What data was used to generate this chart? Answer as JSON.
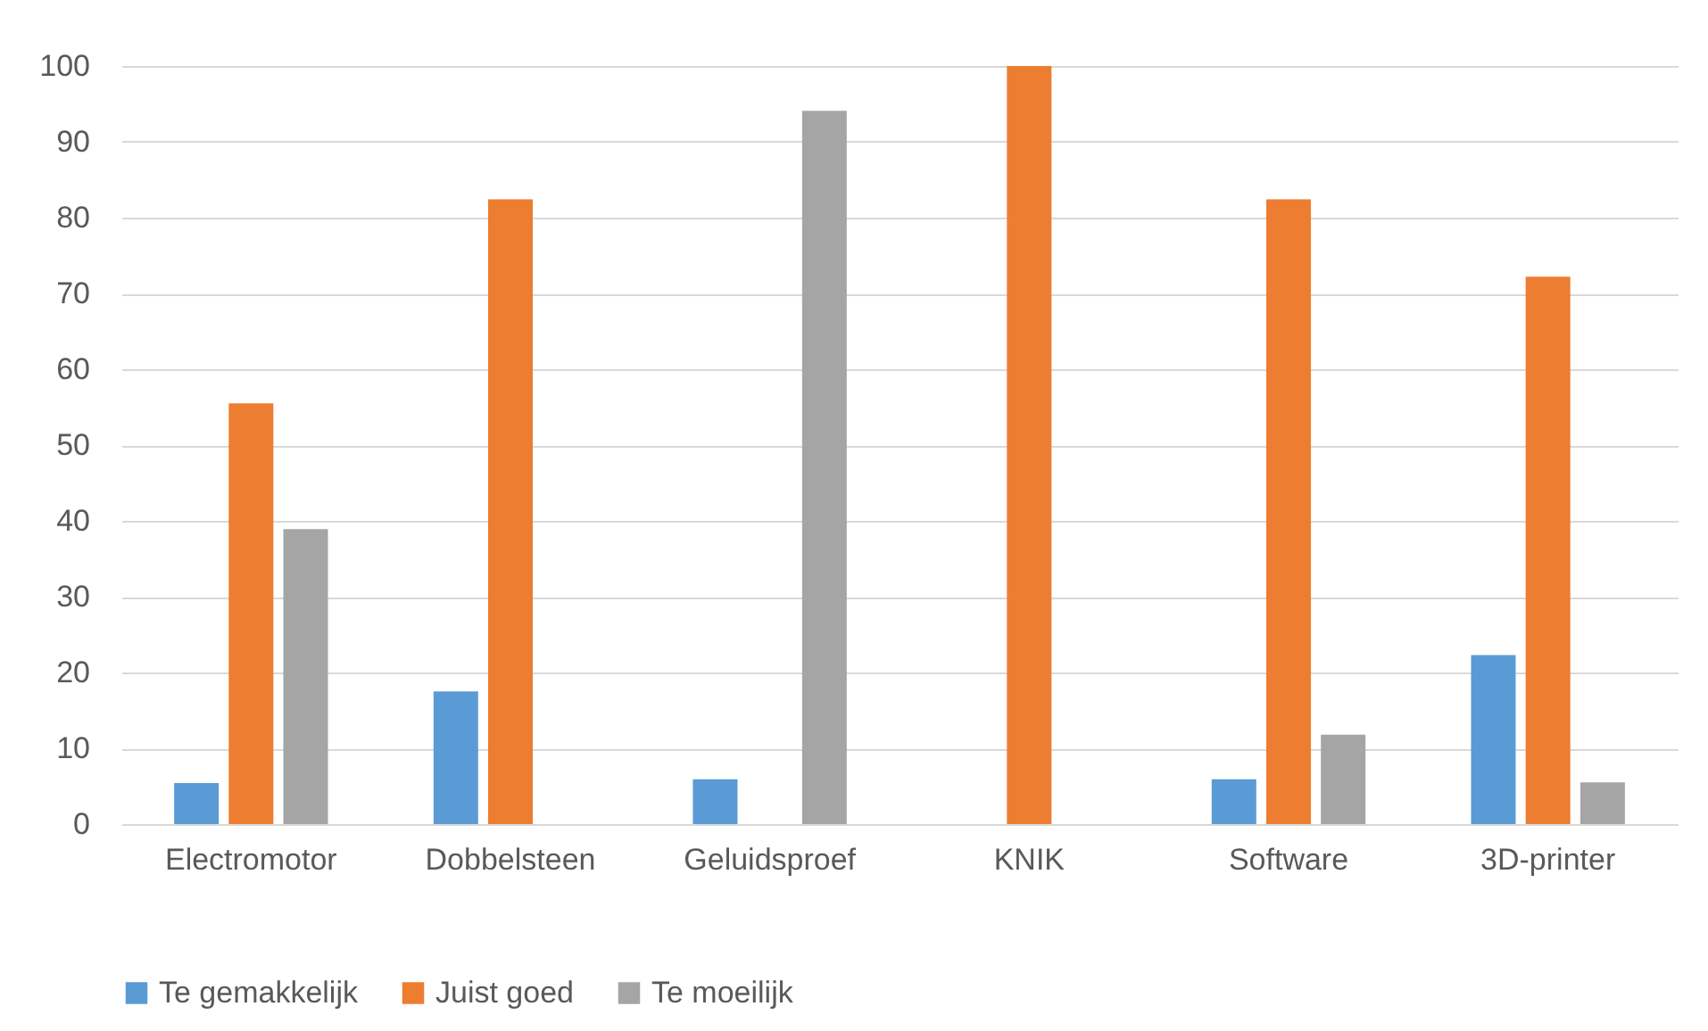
{
  "chart_data": {
    "type": "bar",
    "categories": [
      "Electromotor",
      "Dobbelsteen",
      "Geluidsproef",
      "KNIK",
      "Software",
      "3D-printer"
    ],
    "series": [
      {
        "name": "Te gemakkelijk",
        "color": "#5b9bd5",
        "values": [
          5.4,
          17.5,
          5.9,
          0,
          5.9,
          22.3
        ]
      },
      {
        "name": "Juist goed",
        "color": "#ed7d31",
        "values": [
          55.5,
          82.4,
          0,
          100,
          82.4,
          72.2
        ]
      },
      {
        "name": "Te moeilijk",
        "color": "#a5a5a5",
        "values": [
          38.9,
          0,
          94.1,
          0,
          11.8,
          5.5
        ]
      }
    ],
    "ylim": [
      0,
      100
    ],
    "yticks": [
      0,
      10,
      20,
      30,
      40,
      50,
      60,
      70,
      80,
      90,
      100
    ],
    "grid": "y",
    "legend": "bottom"
  }
}
